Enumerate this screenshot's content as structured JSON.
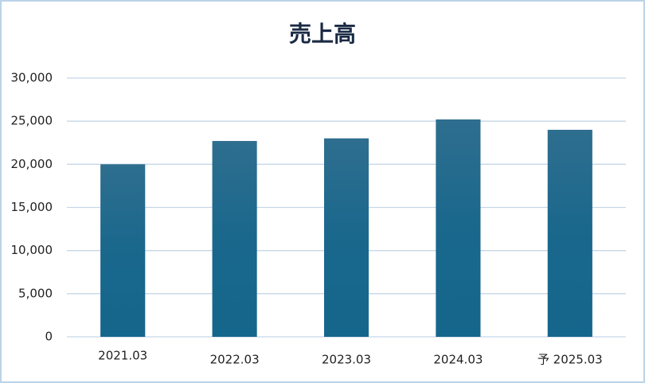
{
  "chart_data": {
    "type": "bar",
    "title": "売上高",
    "categories": [
      "2021.03",
      "2022.03",
      "2023.03",
      "2024.03",
      "予 2025.03"
    ],
    "values": [
      20000,
      22700,
      23000,
      25200,
      24000
    ],
    "color": "#15668c",
    "ylim": [
      0,
      30000
    ],
    "yticks": [
      0,
      {
        "value": 5000,
        "label": "5,000"
      },
      {
        "value": 10000,
        "label": "10,000"
      },
      {
        "value": 15000,
        "label": "15,000"
      },
      {
        "value": 20000,
        "label": "20,000"
      },
      {
        "value": 25000,
        "label": "25,000"
      },
      {
        "value": 30000,
        "label": "30,000"
      }
    ],
    "grid": true
  }
}
